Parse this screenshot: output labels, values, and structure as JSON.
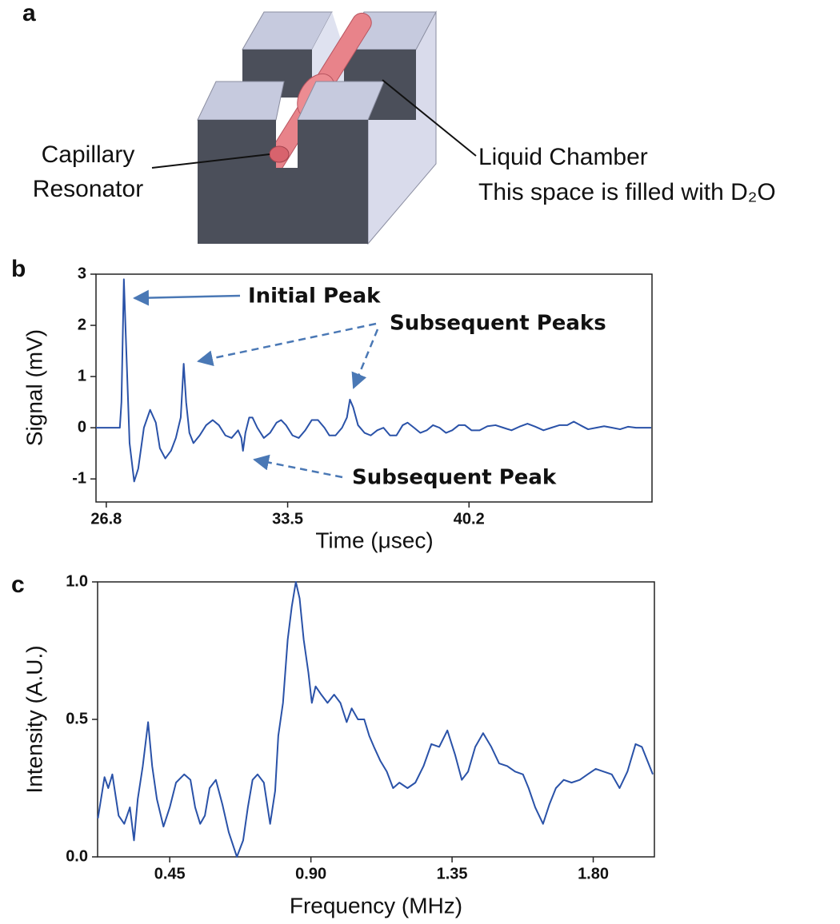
{
  "panel_labels": {
    "a": "a",
    "b": "b",
    "c": "c"
  },
  "diagram": {
    "capillary_label": [
      "Capillary",
      "Resonator"
    ],
    "chamber_label": [
      "Liquid Chamber",
      "This space is filled with D₂O"
    ]
  },
  "chart_data": [
    {
      "type": "line",
      "x_label": "Time (μsec)",
      "y_label": "Signal (mV)",
      "annotations": [
        "Initial Peak",
        "Subsequent Peaks",
        "Subsequent Peak"
      ],
      "x": [
        26.42,
        27.01,
        27.3,
        27.36,
        27.45,
        27.54,
        27.66,
        27.83,
        27.98,
        28.19,
        28.42,
        28.63,
        28.78,
        28.98,
        29.19,
        29.37,
        29.55,
        29.66,
        29.75,
        29.87,
        30.02,
        30.25,
        30.49,
        30.73,
        30.96,
        31.2,
        31.43,
        31.67,
        31.79,
        31.85,
        31.94,
        32.08,
        32.2,
        32.38,
        32.62,
        32.85,
        33.09,
        33.26,
        33.44,
        33.68,
        33.91,
        34.15,
        34.39,
        34.62,
        34.86,
        35.04,
        35.27,
        35.51,
        35.69,
        35.8,
        35.92,
        36.1,
        36.34,
        36.57,
        36.81,
        37.04,
        37.28,
        37.52,
        37.75,
        37.93,
        38.17,
        38.4,
        38.64,
        38.87,
        39.11,
        39.35,
        39.58,
        39.82,
        40.05,
        40.29,
        40.59,
        40.88,
        41.18,
        41.47,
        41.77,
        42.06,
        42.36,
        42.65,
        42.95,
        43.24,
        43.54,
        43.83,
        44.07,
        44.31,
        44.6,
        44.9,
        45.19,
        45.49,
        45.78,
        46.08,
        46.37,
        46.67,
        46.93
      ],
      "series": [
        {
          "color": "#2a52a8",
          "values": [
            0,
            0,
            0,
            0.5,
            2.9,
            1.5,
            -0.3,
            -1.05,
            -0.8,
            0,
            0.35,
            0.1,
            -0.4,
            -0.6,
            -0.45,
            -0.2,
            0.2,
            1.25,
            0.5,
            -0.1,
            -0.3,
            -0.15,
            0.05,
            0.15,
            0.05,
            -0.15,
            -0.2,
            -0.05,
            -0.2,
            -0.45,
            -0.1,
            0.2,
            0.2,
            0,
            -0.2,
            -0.1,
            0.1,
            0.15,
            0.05,
            -0.15,
            -0.2,
            -0.05,
            0.15,
            0.15,
            0,
            -0.15,
            -0.15,
            0,
            0.2,
            0.55,
            0.4,
            0.05,
            -0.1,
            -0.15,
            -0.05,
            0,
            -0.15,
            -0.15,
            0.05,
            0.1,
            0,
            -0.1,
            -0.05,
            0.05,
            0,
            -0.1,
            -0.05,
            0.05,
            0.05,
            -0.05,
            -0.05,
            0.03,
            0.05,
            0,
            -0.05,
            0.02,
            0.08,
            0.02,
            -0.05,
            0,
            0.05,
            0.05,
            0.12,
            0.05,
            -0.03,
            0,
            0.03,
            0,
            -0.03,
            0.02,
            0,
            0,
            0
          ]
        }
      ],
      "xlim": [
        26.42,
        46.96
      ],
      "ylim": [
        -1.45,
        3
      ],
      "xticks": [
        26.8,
        33.5,
        40.2
      ],
      "yticks": [
        -1,
        0,
        1,
        2,
        3
      ],
      "grid": false
    },
    {
      "type": "line",
      "x_label": "Frequency (MHz)",
      "y_label": "Intensity (A.U.)",
      "x": [
        0.221,
        0.242,
        0.254,
        0.267,
        0.287,
        0.305,
        0.323,
        0.336,
        0.348,
        0.364,
        0.381,
        0.394,
        0.409,
        0.43,
        0.45,
        0.47,
        0.496,
        0.516,
        0.531,
        0.547,
        0.562,
        0.577,
        0.597,
        0.618,
        0.638,
        0.664,
        0.684,
        0.699,
        0.714,
        0.73,
        0.75,
        0.77,
        0.786,
        0.796,
        0.811,
        0.826,
        0.839,
        0.852,
        0.864,
        0.877,
        0.892,
        0.903,
        0.915,
        0.933,
        0.953,
        0.974,
        0.994,
        1.014,
        1.03,
        1.05,
        1.07,
        1.086,
        1.101,
        1.121,
        1.142,
        1.162,
        1.182,
        1.208,
        1.233,
        1.259,
        1.284,
        1.309,
        1.335,
        1.36,
        1.381,
        1.401,
        1.424,
        1.449,
        1.475,
        1.5,
        1.526,
        1.551,
        1.576,
        1.594,
        1.615,
        1.64,
        1.66,
        1.681,
        1.706,
        1.731,
        1.757,
        1.782,
        1.808,
        1.833,
        1.859,
        1.884,
        1.909,
        1.935,
        1.955,
        1.976,
        1.99
      ],
      "series": [
        {
          "color": "#2a52a8",
          "values": [
            0.14,
            0.29,
            0.25,
            0.3,
            0.15,
            0.12,
            0.18,
            0.06,
            0.21,
            0.33,
            0.49,
            0.33,
            0.21,
            0.11,
            0.18,
            0.27,
            0.3,
            0.28,
            0.18,
            0.12,
            0.15,
            0.25,
            0.28,
            0.19,
            0.09,
            0,
            0.06,
            0.18,
            0.28,
            0.3,
            0.27,
            0.12,
            0.24,
            0.44,
            0.56,
            0.79,
            0.91,
            1.0,
            0.94,
            0.79,
            0.67,
            0.56,
            0.62,
            0.59,
            0.56,
            0.59,
            0.56,
            0.49,
            0.54,
            0.5,
            0.5,
            0.44,
            0.4,
            0.35,
            0.31,
            0.25,
            0.27,
            0.25,
            0.27,
            0.33,
            0.41,
            0.4,
            0.46,
            0.37,
            0.28,
            0.31,
            0.4,
            0.45,
            0.4,
            0.34,
            0.33,
            0.31,
            0.3,
            0.25,
            0.18,
            0.12,
            0.19,
            0.25,
            0.28,
            0.27,
            0.28,
            0.3,
            0.32,
            0.31,
            0.3,
            0.25,
            0.31,
            0.41,
            0.4,
            0.34,
            0.3
          ]
        }
      ],
      "xlim": [
        0.22,
        1.995
      ],
      "ylim": [
        0,
        1
      ],
      "xticks": [
        0.45,
        {
          "value": 0.9,
          "label": "0.90"
        },
        1.35,
        {
          "value": 1.8,
          "label": "1.80"
        }
      ],
      "yticks": [
        {
          "value": 0,
          "label": "0.0"
        },
        0.5,
        {
          "value": 1,
          "label": "1.0"
        }
      ],
      "grid": false
    }
  ]
}
